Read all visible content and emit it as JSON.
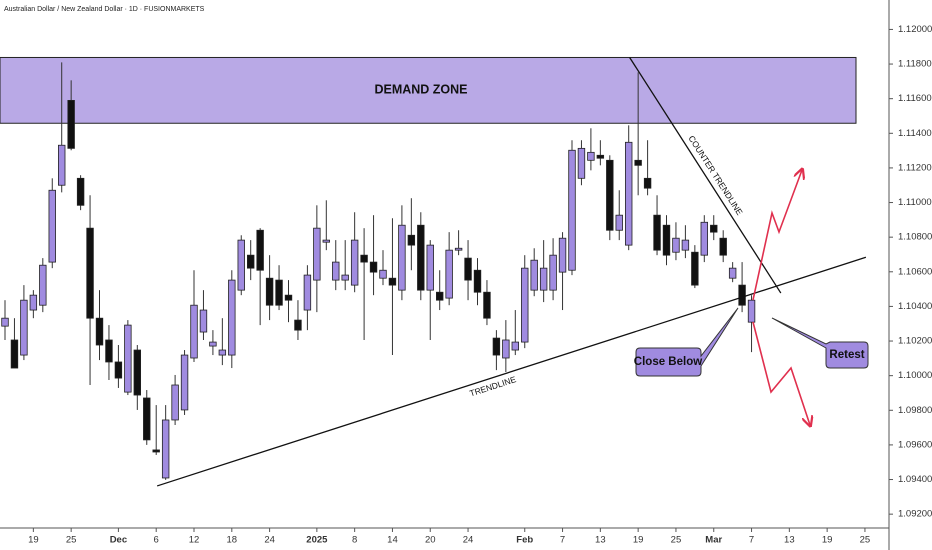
{
  "chart_data": {
    "type": "candlestick",
    "title": "Australian Dollar / New Zealand Dollar · 1D · FUSIONMARKETS",
    "open": [
      1.10286,
      1.10206,
      1.10119,
      1.10379,
      1.10407,
      1.10656,
      1.111,
      1.1159,
      1.1114,
      1.10852,
      1.10332,
      1.10206,
      1.10079,
      1.09905,
      1.10148,
      1.09871,
      1.09571,
      1.09409,
      1.09744,
      1.09802,
      1.10102,
      1.10252,
      1.10171,
      1.10119,
      1.10119,
      1.10494,
      1.10696,
      1.1084,
      1.10563,
      1.10552,
      1.10465,
      1.10321,
      1.10379,
      1.10552,
      1.10771,
      1.10552,
      1.10552,
      1.10523,
      1.10696,
      1.10656,
      1.10563,
      1.10563,
      1.10494,
      1.10811,
      1.10869,
      1.10494,
      1.10482,
      1.10448,
      1.10725,
      1.10679,
      1.10609,
      1.10482,
      1.10217,
      1.10102,
      1.10148,
      1.10194,
      1.10494,
      1.10494,
      1.10494,
      1.10598,
      1.10609,
      1.1114,
      1.11244,
      1.11273,
      1.11244,
      1.1084,
      1.10754,
      1.11244,
      1.1114,
      1.10927,
      1.10869,
      1.10713,
      1.10725,
      1.10713,
      1.10696,
      1.10869,
      1.10794,
      1.10563,
      1.10523,
      1.10309
    ],
    "high": [
      1.10436,
      1.10332,
      1.10523,
      1.10494,
      1.10679,
      1.1114,
      1.1181,
      1.11706,
      1.11158,
      1.11042,
      1.10494,
      1.10292,
      1.10177,
      1.10321,
      1.10177,
      1.09917,
      1.0983,
      1.0983,
      1.10004,
      1.10148,
      1.10609,
      1.10494,
      1.10263,
      1.10332,
      1.10609,
      1.10811,
      1.10783,
      1.10852,
      1.10696,
      1.10638,
      1.10552,
      1.10436,
      1.10638,
      1.10984,
      1.11013,
      1.10783,
      1.10783,
      1.10944,
      1.10852,
      1.10927,
      1.10725,
      1.10909,
      1.10984,
      1.11025,
      1.10944,
      1.10783,
      1.10609,
      1.10829,
      1.1084,
      1.10783,
      1.10679,
      1.10552,
      1.10263,
      1.10321,
      1.10379,
      1.10696,
      1.10736,
      1.10783,
      1.10794,
      1.10829,
      1.1136,
      1.1136,
      1.11429,
      1.1136,
      1.11273,
      1.11071,
      1.11446,
      1.11752,
      1.1136,
      1.11042,
      1.10927,
      1.10886,
      1.10869,
      1.10754,
      1.10927,
      1.10927,
      1.1084,
      1.10656,
      1.10656,
      1.10465
    ],
    "low": [
      1.10206,
      1.10044,
      1.1009,
      1.10332,
      1.10367,
      1.10621,
      1.11059,
      1.11302,
      1.10956,
      1.09946,
      1.1009,
      1.09975,
      1.09929,
      1.09888,
      1.09802,
      1.096,
      1.09542,
      1.09398,
      1.09715,
      1.09773,
      1.10079,
      1.10206,
      1.10119,
      1.10061,
      1.10044,
      1.10465,
      1.10552,
      1.10292,
      1.10321,
      1.10379,
      1.10309,
      1.10206,
      1.10263,
      1.10367,
      1.10725,
      1.10494,
      1.10494,
      1.10482,
      1.10206,
      1.10465,
      1.10523,
      1.10119,
      1.10436,
      1.10609,
      1.10436,
      1.10206,
      1.10379,
      1.10407,
      1.10696,
      1.10436,
      1.10407,
      1.10292,
      1.10032,
      1.10021,
      1.10119,
      1.10159,
      1.10459,
      1.10425,
      1.10436,
      1.10379,
      1.10581,
      1.111,
      1.11186,
      1.11215,
      1.10783,
      1.10783,
      1.10725,
      1.11042,
      1.11042,
      1.10696,
      1.10638,
      1.10667,
      1.10679,
      1.10506,
      1.10656,
      1.10783,
      1.10656,
      1.1054,
      1.10367,
      1.10136
    ],
    "close": [
      1.10332,
      1.10044,
      1.10436,
      1.10465,
      1.10638,
      1.11071,
      1.11331,
      1.11313,
      1.10984,
      1.10332,
      1.10177,
      1.10079,
      1.09986,
      1.10292,
      1.09888,
      1.09629,
      1.09559,
      1.09744,
      1.09946,
      1.10119,
      1.10407,
      1.10379,
      1.10194,
      1.10148,
      1.10552,
      1.10783,
      1.10621,
      1.10609,
      1.10407,
      1.10407,
      1.10436,
      1.10263,
      1.10581,
      1.10852,
      1.10783,
      1.10656,
      1.10581,
      1.10783,
      1.10656,
      1.10598,
      1.10609,
      1.10523,
      1.10869,
      1.10754,
      1.10494,
      1.10754,
      1.10436,
      1.10725,
      1.10736,
      1.10552,
      1.10482,
      1.10332,
      1.10119,
      1.10206,
      1.10194,
      1.10621,
      1.10667,
      1.10621,
      1.10696,
      1.10794,
      1.11302,
      1.11313,
      1.1129,
      1.11256,
      1.1084,
      1.10927,
      1.11348,
      1.11215,
      1.11083,
      1.10725,
      1.10696,
      1.10794,
      1.10783,
      1.10523,
      1.10886,
      1.10829,
      1.10696,
      1.10621,
      1.10407,
      1.10436
    ],
    "up_color": "#a08be0",
    "down_color": "#111111",
    "xlim": [
      -0.53,
      93.44
    ],
    "xticks": [
      {
        "value": 3,
        "label": "19"
      },
      {
        "value": 7,
        "label": "25"
      },
      {
        "value": 12,
        "label": "Dec"
      },
      {
        "value": 16,
        "label": "6"
      },
      {
        "value": 20,
        "label": "12"
      },
      {
        "value": 24,
        "label": "18"
      },
      {
        "value": 28,
        "label": "24"
      },
      {
        "value": 33,
        "label": "2025"
      },
      {
        "value": 37,
        "label": "8"
      },
      {
        "value": 41,
        "label": "14"
      },
      {
        "value": 45,
        "label": "20"
      },
      {
        "value": 49,
        "label": "24"
      },
      {
        "value": 55,
        "label": "Feb"
      },
      {
        "value": 59,
        "label": "7"
      },
      {
        "value": 63,
        "label": "13"
      },
      {
        "value": 67,
        "label": "19"
      },
      {
        "value": 71,
        "label": "25"
      },
      {
        "value": 75,
        "label": "Mar"
      },
      {
        "value": 79,
        "label": "7"
      },
      {
        "value": 83,
        "label": "13"
      },
      {
        "value": 87,
        "label": "19"
      },
      {
        "value": 91,
        "label": "25"
      }
    ],
    "ylim": [
      1.0912,
      1.1217
    ],
    "yticks": [
      {
        "value": 1.092,
        "label": "1.09200"
      },
      {
        "value": 1.094,
        "label": "1.09400"
      },
      {
        "value": 1.096,
        "label": "1.09600"
      },
      {
        "value": 1.098,
        "label": "1.09800"
      },
      {
        "value": 1.1,
        "label": "1.10000"
      },
      {
        "value": 1.102,
        "label": "1.10200"
      },
      {
        "value": 1.104,
        "label": "1.10400"
      },
      {
        "value": 1.106,
        "label": "1.10600"
      },
      {
        "value": 1.108,
        "label": "1.10800"
      },
      {
        "value": 1.11,
        "label": "1.11000"
      },
      {
        "value": 1.112,
        "label": "1.11200"
      },
      {
        "value": 1.114,
        "label": "1.11400"
      },
      {
        "value": 1.116,
        "label": "1.11600"
      },
      {
        "value": 1.118,
        "label": "1.11800"
      },
      {
        "value": 1.12,
        "label": "1.12000"
      }
    ],
    "zones": [
      {
        "label": "DEMAND ZONE",
        "low": 1.11458,
        "high": 1.11838,
        "color": "#b9a9e6"
      }
    ],
    "lines": [
      {
        "label": "TRENDLINE",
        "from": [
          16.1,
          1.09363
        ],
        "to": [
          91.1,
          1.10684
        ]
      },
      {
        "label": "COUNTER TRENDLINE",
        "from": [
          66.1,
          1.11838
        ],
        "to": [
          82.1,
          1.10477
        ]
      }
    ],
    "callouts": [
      "Close Below",
      "Retest"
    ]
  }
}
